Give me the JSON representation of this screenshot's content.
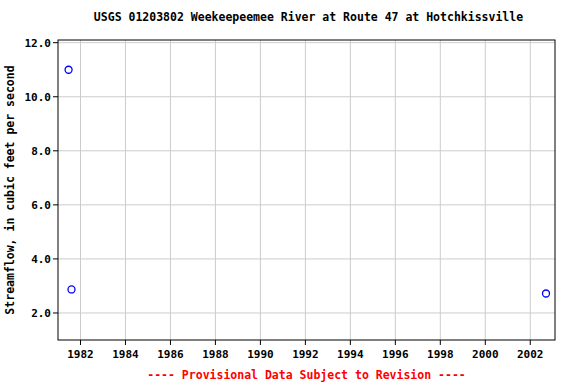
{
  "chart_data": {
    "type": "scatter",
    "title": "USGS 01203802 Weekeepeemee River at Route 47 at Hotchkissville",
    "y_label": "Streamflow, in cubic feet per second",
    "annotations": [
      "---- Provisional Data Subject to Revision ----"
    ],
    "x": [
      1981.47,
      1981.6,
      2002.7
    ],
    "values": [
      11.0,
      2.87,
      2.72
    ],
    "color": "#0000ff",
    "marker": "open_circle",
    "xlim": [
      1981,
      2003.1
    ],
    "xticks": [
      1982,
      1984,
      1986,
      1988,
      1990,
      1992,
      1994,
      1996,
      1998,
      2000,
      2002
    ],
    "ylim": [
      1.0,
      12.1
    ],
    "yticks": [
      {
        "value": 2,
        "label": "2.0"
      },
      {
        "value": 4,
        "label": "4.0"
      },
      {
        "value": 6,
        "label": "6.0"
      },
      {
        "value": 8,
        "label": "8.0"
      },
      {
        "value": 10,
        "label": "10.0"
      },
      {
        "value": 12,
        "label": "12.0"
      }
    ],
    "grid": true
  }
}
